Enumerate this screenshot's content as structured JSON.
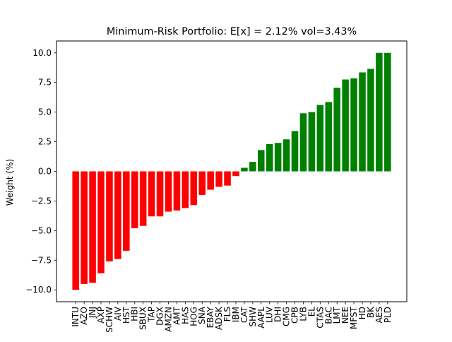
{
  "chart_data": {
    "type": "bar",
    "title": "Minimum-Risk Portfolio: E[x] = 2.12% vol=3.43%",
    "xlabel": "",
    "ylabel": "Weight (%)",
    "ylim": [
      -11.0,
      11.0
    ],
    "yticks": [
      -10.0,
      -7.5,
      -5.0,
      -2.5,
      0.0,
      2.5,
      5.0,
      7.5,
      10.0
    ],
    "ytick_labels": [
      "−10.0",
      "−7.5",
      "−5.0",
      "−2.5",
      "0.0",
      "2.5",
      "5.0",
      "7.5",
      "10.0"
    ],
    "grid": false,
    "negative_color": "#ff0000",
    "positive_color": "#008000",
    "categories": [
      "INTU",
      "AZO",
      "JNJ",
      "AXP",
      "SCHW",
      "AIV",
      "HST",
      "HBI",
      "SBUX",
      "TAP",
      "DGX",
      "AMZN",
      "AMT",
      "HAS",
      "HOG",
      "SNA",
      "EBAY",
      "ADSK",
      "FLS",
      "IBM",
      "CAT",
      "SHW",
      "AAPL",
      "LUV",
      "DHI",
      "CMG",
      "CPB",
      "LYB",
      "EL",
      "CTAS",
      "BAC",
      "LMT",
      "NEE",
      "MFST",
      "HD",
      "BK",
      "AES",
      "PLD"
    ],
    "values": [
      -10.0,
      -9.5,
      -9.4,
      -8.6,
      -7.6,
      -7.4,
      -6.7,
      -4.8,
      -4.6,
      -3.8,
      -3.8,
      -3.4,
      -3.3,
      -3.1,
      -2.85,
      -2.0,
      -1.55,
      -1.3,
      -1.2,
      -0.4,
      0.3,
      0.8,
      1.8,
      2.3,
      2.4,
      2.7,
      3.4,
      4.9,
      5.0,
      5.6,
      5.85,
      7.05,
      7.75,
      7.85,
      8.35,
      8.65,
      10.0,
      10.0
    ]
  }
}
